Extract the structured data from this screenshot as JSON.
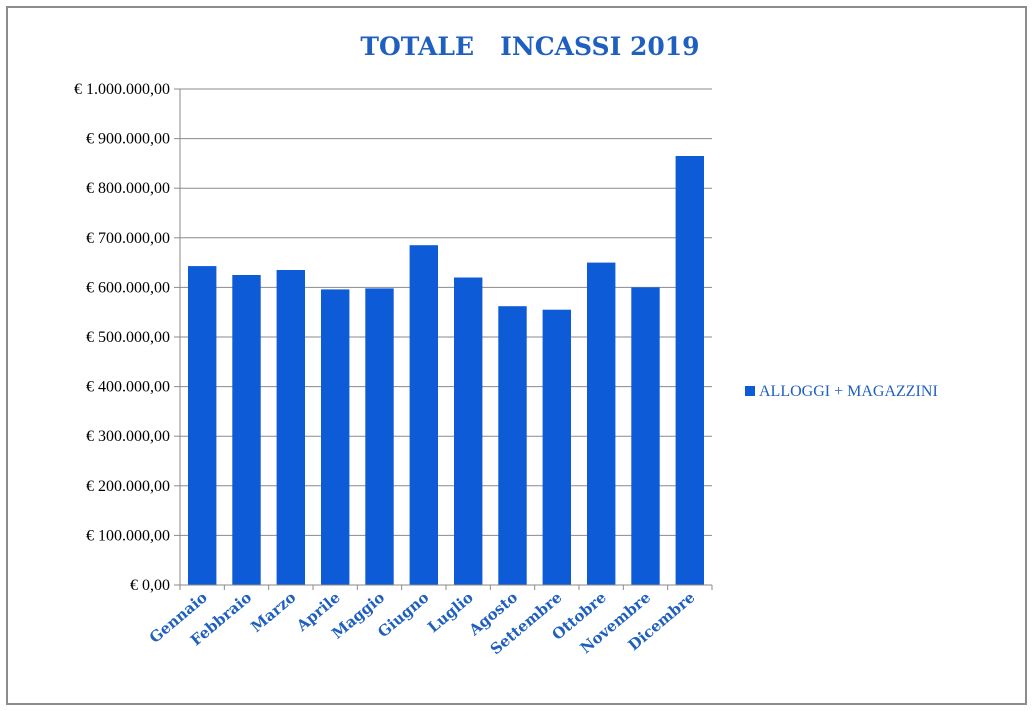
{
  "chart_data": {
    "type": "bar",
    "title": "TOTALE   INCASSI 2019",
    "xlabel": "",
    "ylabel": "",
    "ylim": [
      0,
      1000000
    ],
    "y_tick_values": [
      0,
      100000,
      200000,
      300000,
      400000,
      500000,
      600000,
      700000,
      800000,
      900000,
      1000000
    ],
    "y_tick_labels": [
      "€ 0,00",
      "€ 100.000,00",
      "€ 200.000,00",
      "€ 300.000,00",
      "€ 400.000,00",
      "€ 500.000,00",
      "€ 600.000,00",
      "€ 700.000,00",
      "€ 800.000,00",
      "€ 900.000,00",
      "€ 1.000.000,00"
    ],
    "categories": [
      "Gennaio",
      "Febbraio",
      "Marzo",
      "Aprile",
      "Maggio",
      "Giugno",
      "Luglio",
      "Agosto",
      "Settembre",
      "Ottobre",
      "Novembre",
      "Dicembre"
    ],
    "series": [
      {
        "name": "ALLOGGI + MAGAZZINI",
        "color": "#0d5bd6",
        "values": [
          643000,
          625000,
          635000,
          596000,
          598000,
          685000,
          620000,
          562000,
          555000,
          650000,
          600000,
          865000
        ]
      }
    ],
    "grid": true,
    "legend_position": "right"
  }
}
